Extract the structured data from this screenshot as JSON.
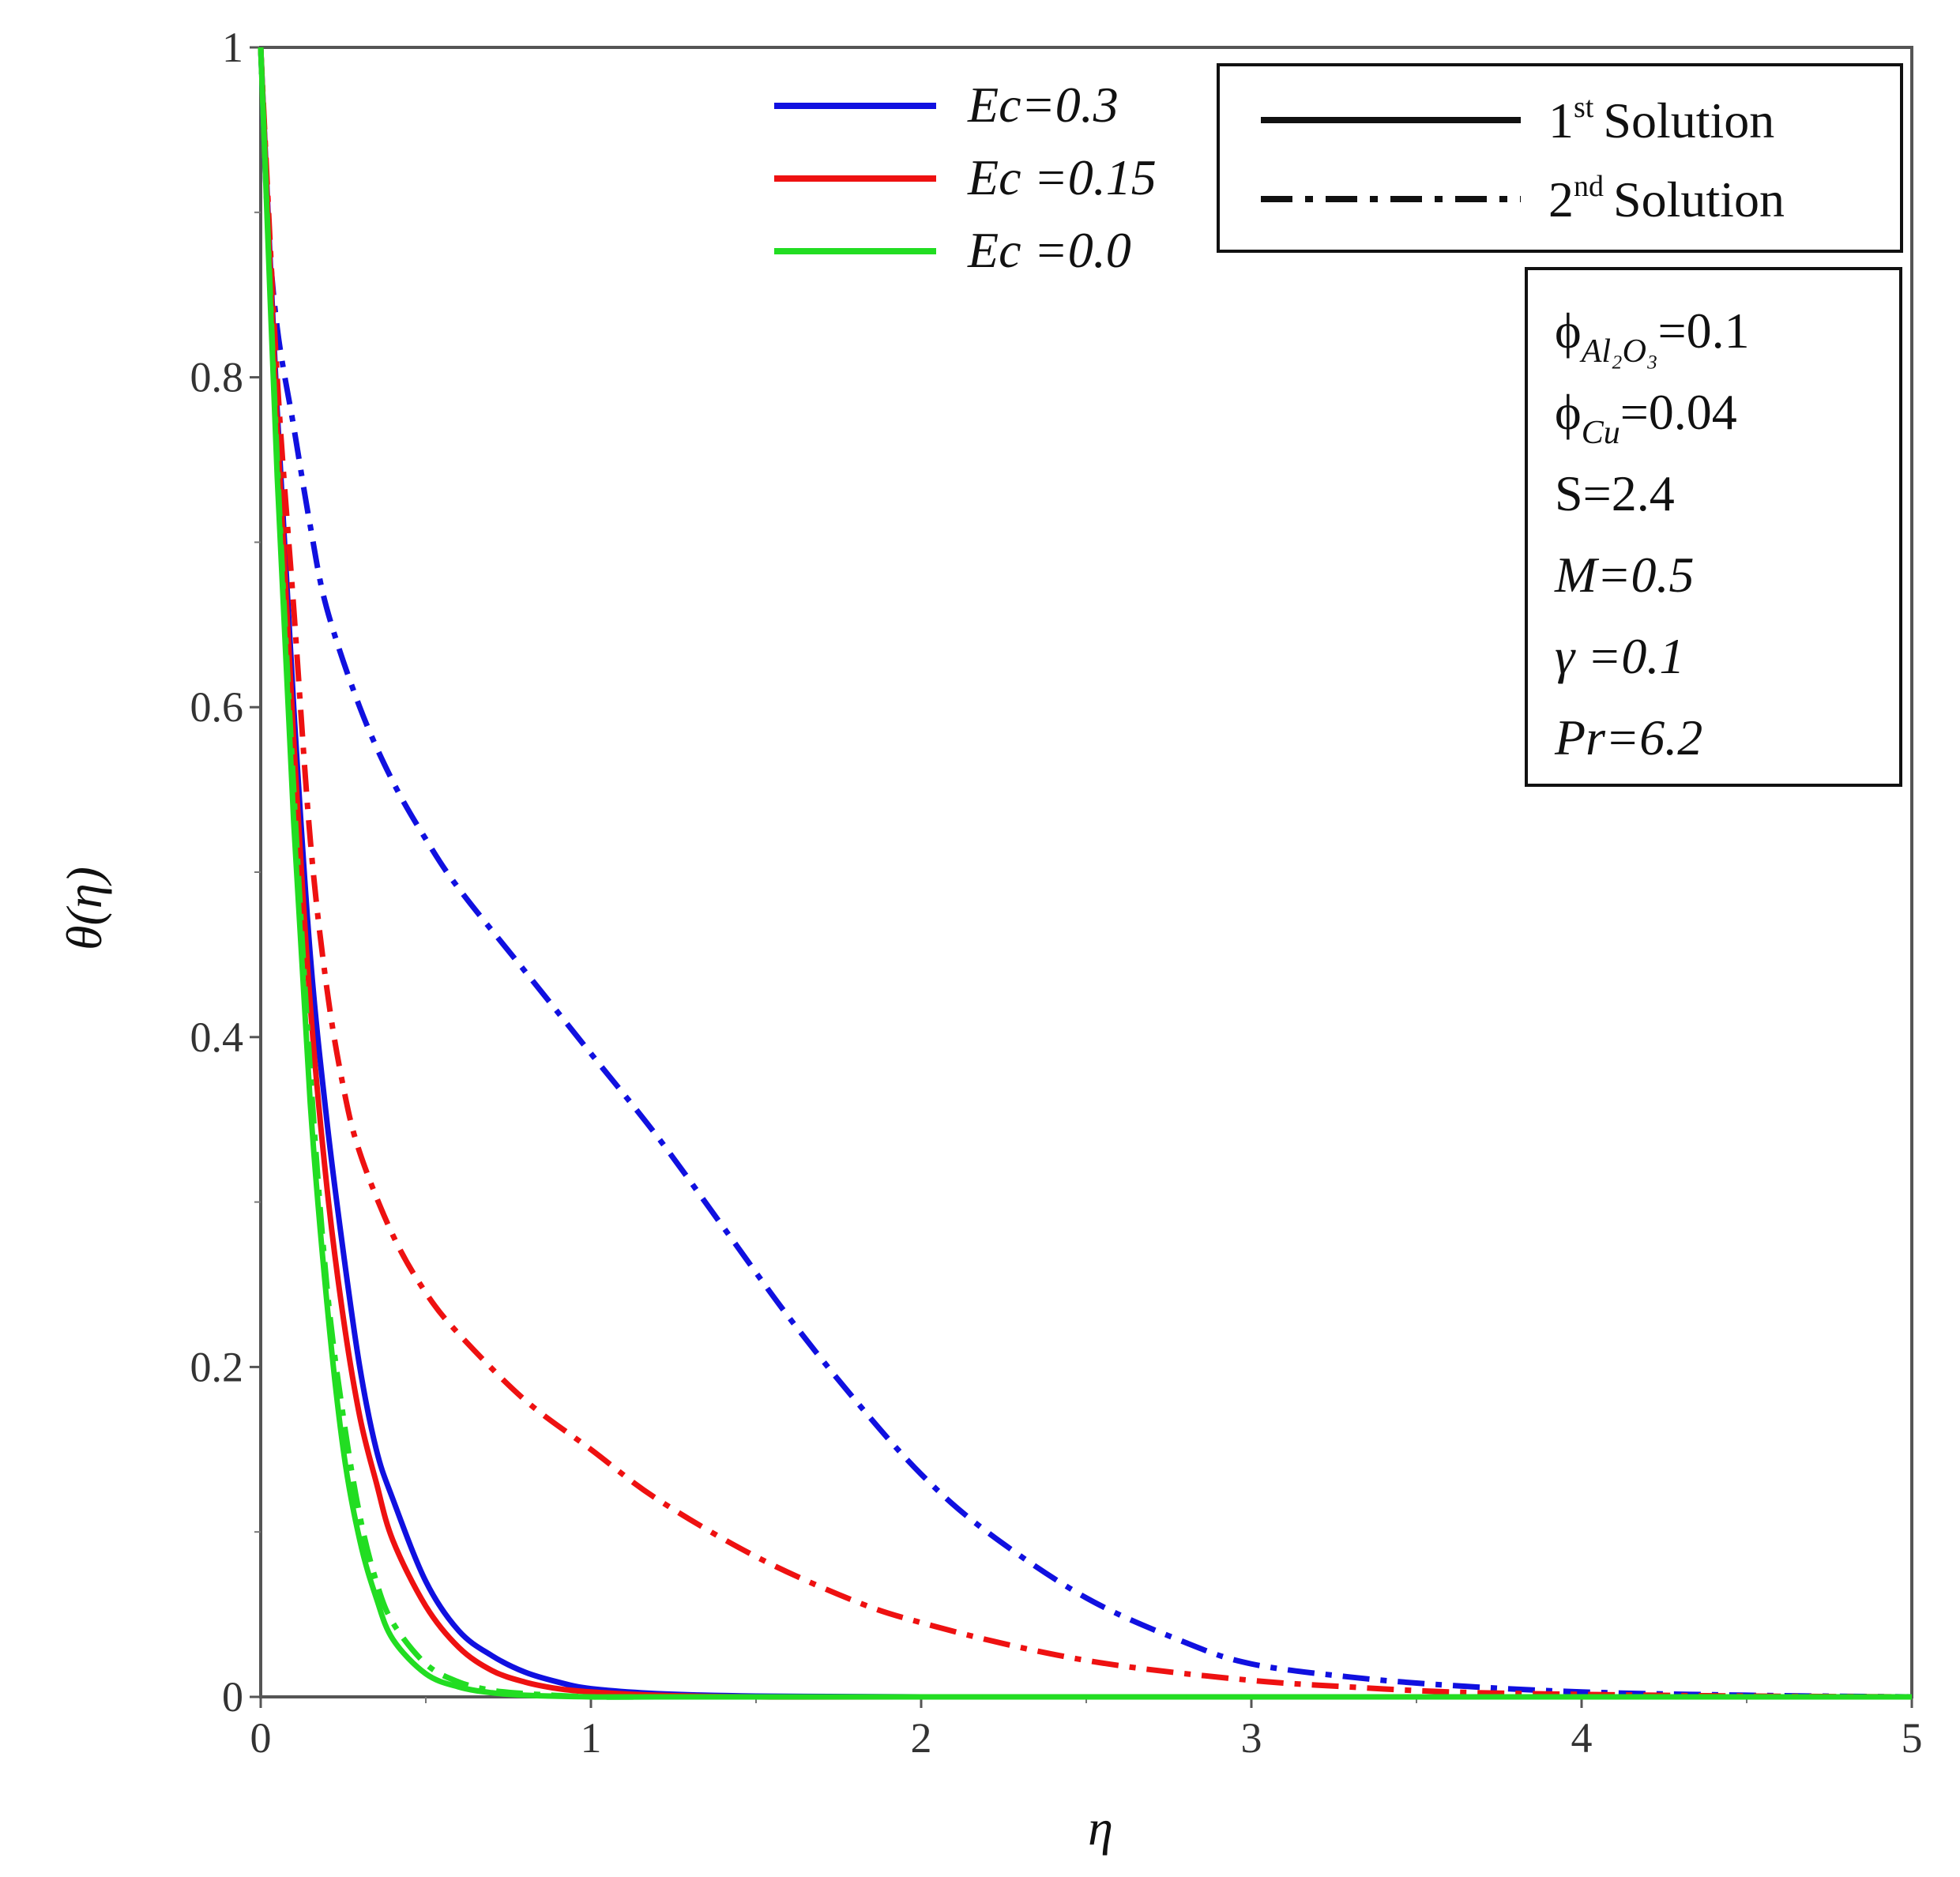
{
  "chart_data": {
    "type": "line",
    "xlabel": "η",
    "ylabel": "θ(η)",
    "xlim": [
      0,
      5
    ],
    "ylim": [
      0,
      1
    ],
    "x_ticks": [
      "0",
      "1",
      "2",
      "3",
      "4",
      "5"
    ],
    "y_ticks": [
      "0",
      "0.2",
      "0.4",
      "0.6",
      "0.8",
      "1"
    ],
    "grid": false,
    "legend_ec": {
      "placement": "top-center",
      "entries": [
        {
          "label": "Ec=0.3",
          "color": "#1010e0"
        },
        {
          "label": "Ec =0.15",
          "color": "#ee1111"
        },
        {
          "label": "Ec =0.0",
          "color": "#22dd22"
        }
      ]
    },
    "legend_solution": {
      "placement": "top-right",
      "entries": [
        {
          "num": "1",
          "sup": "st",
          "text": "Solution",
          "style": "solid"
        },
        {
          "num": "2",
          "sup": "nd",
          "text": "Solution",
          "style": "dash-dot"
        }
      ]
    },
    "parameters": {
      "placement": "right",
      "items": [
        {
          "name": "ϕ",
          "sub": "Al₂O₃",
          "value": "=0.1",
          "italic": false
        },
        {
          "name": "ϕ",
          "sub": "Cu",
          "value": "=0.04",
          "italic": false
        },
        {
          "name": "S",
          "sub": "",
          "value": "=2.4",
          "italic": false
        },
        {
          "name": "M",
          "sub": "",
          "value": "=0.5",
          "italic": true
        },
        {
          "name": "γ ",
          "sub": "",
          "value": "=0.1",
          "italic": true
        },
        {
          "name": "Pr",
          "sub": "",
          "value": "=6.2",
          "italic": true
        }
      ]
    },
    "series": [
      {
        "name": "Ec=0.3",
        "solution": "1st",
        "color": "#1010e0",
        "style": "solid",
        "x": [
          0,
          0.05,
          0.1,
          0.15,
          0.2,
          0.25,
          0.3,
          0.35,
          0.4,
          0.5,
          0.6,
          0.7,
          0.8,
          0.9,
          1.0,
          1.2,
          1.5,
          2,
          3,
          4,
          5
        ],
        "y": [
          1.0,
          0.78,
          0.6,
          0.45,
          0.35,
          0.27,
          0.2,
          0.15,
          0.12,
          0.07,
          0.04,
          0.025,
          0.015,
          0.009,
          0.005,
          0.002,
          0.0005,
          0,
          0,
          0,
          0
        ]
      },
      {
        "name": "Ec=0.3",
        "solution": "2nd",
        "color": "#1010e0",
        "style": "dash-dot",
        "x": [
          0,
          0.02,
          0.05,
          0.1,
          0.15,
          0.2,
          0.3,
          0.4,
          0.5,
          0.6,
          0.8,
          1.0,
          1.2,
          1.4,
          1.6,
          1.8,
          2.0,
          2.2,
          2.5,
          2.8,
          3.0,
          3.3,
          3.6,
          4.0,
          4.5,
          5.0
        ],
        "y": [
          1.0,
          0.9,
          0.83,
          0.77,
          0.71,
          0.66,
          0.6,
          0.555,
          0.52,
          0.49,
          0.44,
          0.39,
          0.34,
          0.285,
          0.23,
          0.18,
          0.135,
          0.1,
          0.06,
          0.033,
          0.02,
          0.012,
          0.007,
          0.003,
          0.001,
          0
        ]
      },
      {
        "name": "Ec =0.15",
        "solution": "1st",
        "color": "#ee1111",
        "style": "solid",
        "x": [
          0,
          0.05,
          0.1,
          0.15,
          0.2,
          0.25,
          0.3,
          0.35,
          0.4,
          0.5,
          0.6,
          0.7,
          0.8,
          0.9,
          1.0,
          1.2,
          1.5,
          2,
          3,
          4,
          5
        ],
        "y": [
          1.0,
          0.77,
          0.58,
          0.42,
          0.31,
          0.23,
          0.17,
          0.13,
          0.095,
          0.055,
          0.03,
          0.016,
          0.009,
          0.005,
          0.003,
          0.001,
          0,
          0,
          0,
          0,
          0
        ]
      },
      {
        "name": "Ec =0.15",
        "solution": "2nd",
        "color": "#ee1111",
        "style": "dash-dot",
        "x": [
          0,
          0.05,
          0.1,
          0.15,
          0.2,
          0.25,
          0.3,
          0.4,
          0.5,
          0.6,
          0.8,
          1.0,
          1.2,
          1.5,
          1.8,
          2.0,
          2.3,
          2.6,
          3.0,
          3.3,
          3.6,
          4.0,
          4.5,
          5.0
        ],
        "y": [
          1.0,
          0.8,
          0.66,
          0.52,
          0.43,
          0.37,
          0.33,
          0.28,
          0.245,
          0.22,
          0.18,
          0.15,
          0.12,
          0.085,
          0.058,
          0.045,
          0.03,
          0.019,
          0.01,
          0.006,
          0.003,
          0.0015,
          0.0005,
          0
        ]
      },
      {
        "name": "Ec =0.0",
        "solution": "1st",
        "color": "#22dd22",
        "style": "solid",
        "x": [
          0,
          0.05,
          0.1,
          0.15,
          0.2,
          0.25,
          0.3,
          0.35,
          0.4,
          0.5,
          0.6,
          0.7,
          0.8,
          1.0,
          1.2,
          1.5,
          2,
          3,
          4,
          5
        ],
        "y": [
          1.0,
          0.74,
          0.53,
          0.36,
          0.24,
          0.15,
          0.095,
          0.06,
          0.035,
          0.014,
          0.006,
          0.0025,
          0.001,
          0,
          0,
          0,
          0,
          0,
          0,
          0
        ]
      },
      {
        "name": "Ec =0.0",
        "solution": "2nd",
        "color": "#22dd22",
        "style": "dash-dot",
        "x": [
          0,
          0.05,
          0.1,
          0.15,
          0.2,
          0.25,
          0.3,
          0.35,
          0.4,
          0.5,
          0.6,
          0.7,
          0.8,
          1.0,
          1.2,
          1.5,
          2,
          3,
          4,
          5
        ],
        "y": [
          1.0,
          0.75,
          0.55,
          0.38,
          0.25,
          0.17,
          0.11,
          0.07,
          0.045,
          0.02,
          0.009,
          0.004,
          0.002,
          0,
          0,
          0,
          0,
          0,
          0,
          0
        ]
      }
    ]
  }
}
